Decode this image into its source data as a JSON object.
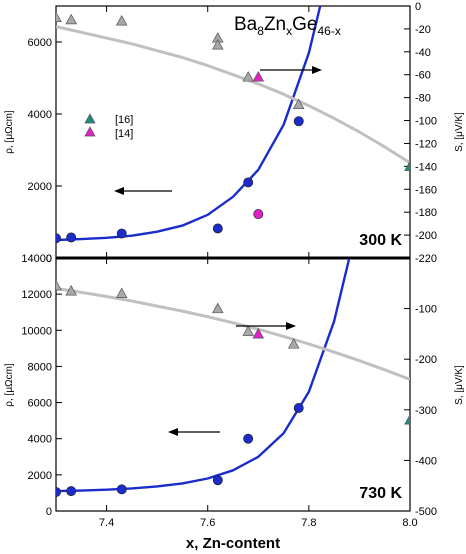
{
  "chart_data": [
    {
      "type": "scatter",
      "panel": "top",
      "title": "Ba8ZnxGe46-x",
      "title_parts": {
        "a": "Ba",
        "a_sub": "8",
        "b": "Zn",
        "b_sub": "x",
        "c": "Ge",
        "c_sub": "46-x"
      },
      "panel_label": "300 K",
      "xlabel": "x, Zn-content",
      "ylabel_left": "ρ, [μΩcm]",
      "ylabel_right": "S, [μV/K]",
      "xlim": [
        7.3,
        8.0
      ],
      "ylim_left": [
        0,
        7000
      ],
      "ylim_right": [
        -220,
        0
      ],
      "yticks_left": [
        0,
        2000,
        4000,
        6000
      ],
      "yticks_right": [
        0,
        -20,
        -40,
        -60,
        -80,
        -100,
        -120,
        -140,
        -160,
        -180,
        -200,
        -220
      ],
      "legend": [
        {
          "label": "[16]",
          "color": "#1f8a80"
        },
        {
          "label": "[14]",
          "color": "#e020c8"
        }
      ],
      "series": [
        {
          "name": "",
          "axis": "left",
          "marker": "circle",
          "color": "#1a2ccc",
          "x": [
            7.3,
            7.33,
            7.43,
            7.62,
            7.68,
            7.78
          ],
          "y": [
            550,
            570,
            680,
            820,
            2100,
            3800
          ]
        },
        {
          "name": "[14]",
          "axis": "left",
          "marker": "circle",
          "color": "#e020c8",
          "x": [
            7.7
          ],
          "y": [
            1220
          ]
        },
        {
          "name": "",
          "axis": "right",
          "marker": "triangle",
          "color": "#a8a8a8",
          "x": [
            7.3,
            7.33,
            7.43,
            7.62,
            7.62,
            7.68,
            7.78
          ],
          "y": [
            -10,
            -12,
            -13,
            -28,
            -34,
            -62,
            -86
          ]
        },
        {
          "name": "[14]",
          "axis": "right",
          "marker": "triangle",
          "color": "#e020c8",
          "x": [
            7.7
          ],
          "y": [
            -62
          ]
        },
        {
          "name": "[16]",
          "axis": "right",
          "marker": "triangle",
          "color": "#1f8a80",
          "x": [
            8.0
          ],
          "y": [
            -140
          ]
        }
      ],
      "fits": [
        {
          "axis": "left",
          "color": "#1a2ccc",
          "type": "exponential",
          "x": [
            7.3,
            7.35,
            7.4,
            7.45,
            7.5,
            7.55,
            7.6,
            7.65,
            7.7,
            7.75,
            7.8,
            7.85
          ],
          "y": [
            500,
            525,
            560,
            620,
            730,
            900,
            1200,
            1700,
            2450,
            3700,
            5700,
            8600
          ]
        },
        {
          "axis": "right",
          "color": "#c0c0c0",
          "type": "polynomial",
          "x": [
            7.3,
            7.35,
            7.4,
            7.45,
            7.5,
            7.55,
            7.6,
            7.65,
            7.7,
            7.75,
            7.8,
            7.85,
            7.9,
            7.95,
            8.0
          ],
          "y": [
            -18,
            -23,
            -28,
            -33,
            -39,
            -45,
            -52,
            -60,
            -68,
            -77,
            -87,
            -98,
            -110,
            -123,
            -137
          ]
        }
      ]
    },
    {
      "type": "scatter",
      "panel": "bottom",
      "panel_label": "730 K",
      "xlabel": "x, Zn-content",
      "ylabel_left": "ρ, [μΩcm]",
      "ylabel_right": "S, [μV/K]",
      "xlim": [
        7.3,
        8.0
      ],
      "xticks": [
        7.4,
        7.6,
        7.8,
        8.0
      ],
      "ylim_left": [
        0,
        14000
      ],
      "ylim_right": [
        -500,
        0
      ],
      "yticks_left": [
        0,
        2000,
        4000,
        6000,
        8000,
        10000,
        12000,
        14000
      ],
      "yticks_right": [
        -100,
        -200,
        -300,
        -400,
        -500
      ],
      "series": [
        {
          "name": "",
          "axis": "left",
          "marker": "circle",
          "color": "#1a2ccc",
          "x": [
            7.3,
            7.33,
            7.43,
            7.62,
            7.68,
            7.78
          ],
          "y": [
            1050,
            1100,
            1200,
            1700,
            4000,
            5700
          ]
        },
        {
          "name": "",
          "axis": "right",
          "marker": "triangle",
          "color": "#a8a8a8",
          "x": [
            7.3,
            7.33,
            7.43,
            7.62,
            7.68,
            7.77
          ],
          "y": [
            -55,
            -65,
            -70,
            -100,
            -145,
            -170
          ]
        },
        {
          "name": "[14]",
          "axis": "right",
          "marker": "triangle",
          "color": "#e020c8",
          "x": [
            7.7
          ],
          "y": [
            -150
          ]
        },
        {
          "name": "[16]",
          "axis": "right",
          "marker": "triangle",
          "color": "#1f8a80",
          "x": [
            8.0
          ],
          "y": [
            -320
          ]
        }
      ],
      "fits": [
        {
          "axis": "left",
          "color": "#1a2ccc",
          "type": "exponential",
          "x": [
            7.3,
            7.35,
            7.4,
            7.45,
            7.5,
            7.55,
            7.6,
            7.65,
            7.7,
            7.75,
            7.8,
            7.85,
            7.88
          ],
          "y": [
            1100,
            1130,
            1180,
            1250,
            1360,
            1530,
            1800,
            2250,
            3000,
            4300,
            6600,
            10500,
            14000
          ]
        },
        {
          "axis": "right",
          "color": "#c0c0c0",
          "type": "polynomial",
          "x": [
            7.3,
            7.35,
            7.4,
            7.45,
            7.5,
            7.55,
            7.6,
            7.65,
            7.7,
            7.75,
            7.8,
            7.85,
            7.9,
            7.95,
            8.0
          ],
          "y": [
            -60,
            -68,
            -76,
            -85,
            -95,
            -105,
            -116,
            -128,
            -141,
            -155,
            -170,
            -186,
            -203,
            -221,
            -240
          ]
        }
      ]
    }
  ]
}
